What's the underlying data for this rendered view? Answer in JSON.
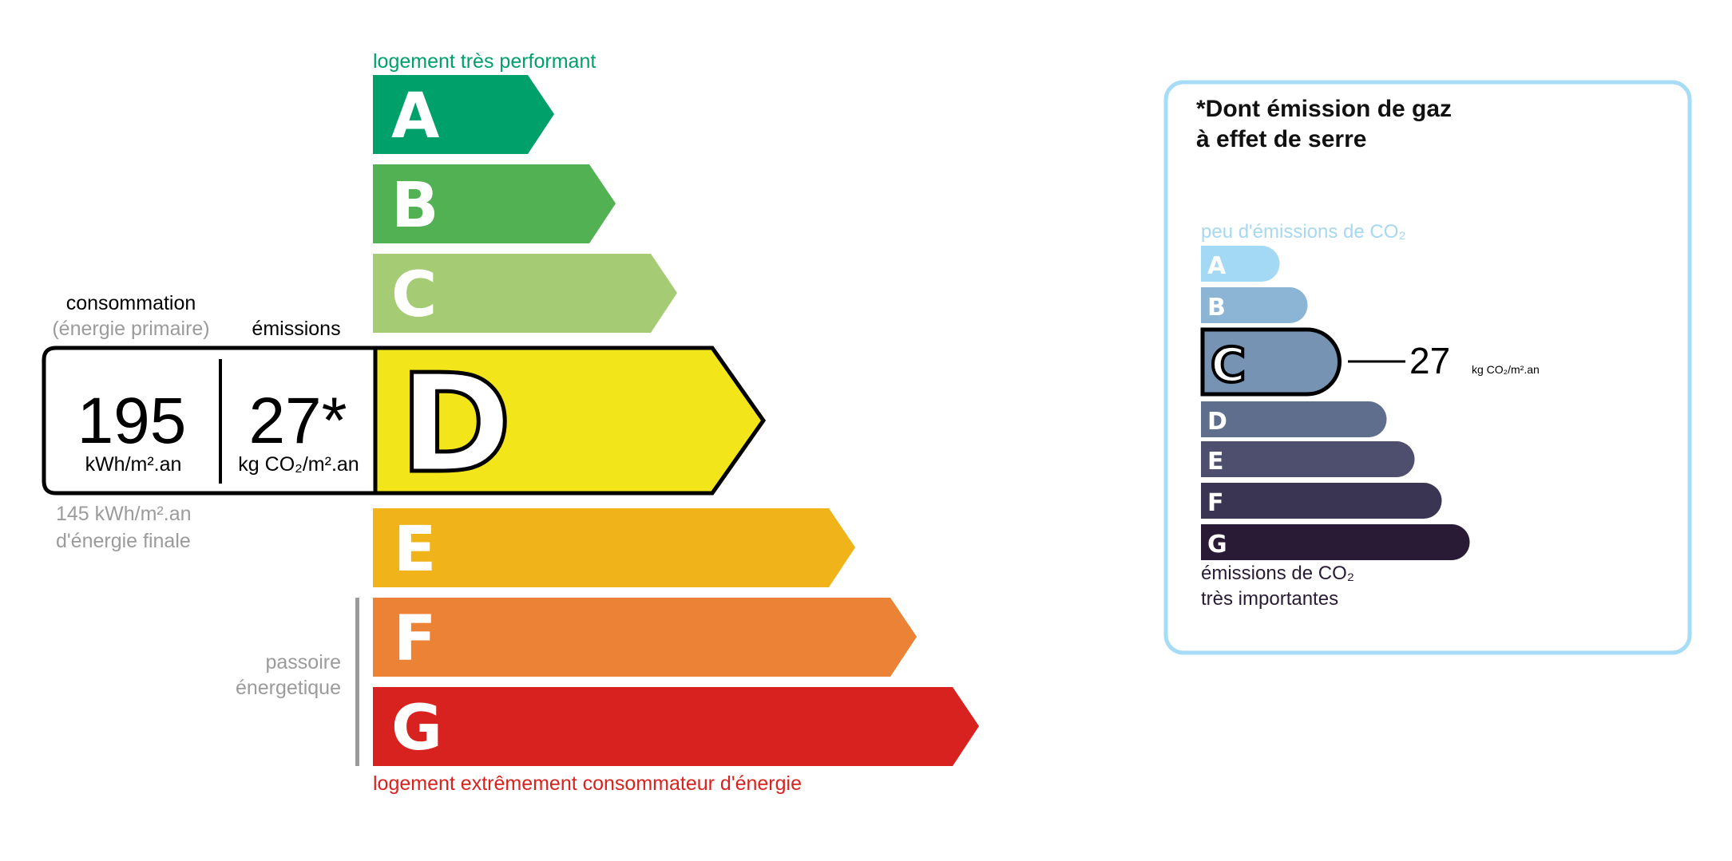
{
  "dpe": {
    "top_label": "logement très performant",
    "bottom_label": "logement extrêmement consommateur d'énergie",
    "classes": [
      {
        "letter": "A",
        "color": "#00a06a"
      },
      {
        "letter": "B",
        "color": "#52b153"
      },
      {
        "letter": "C",
        "color": "#a5cc74"
      },
      {
        "letter": "D",
        "color": "#f2e61b"
      },
      {
        "letter": "E",
        "color": "#f0b41a"
      },
      {
        "letter": "F",
        "color": "#eb8235"
      },
      {
        "letter": "G",
        "color": "#d7221f"
      }
    ],
    "current_class": "D",
    "consumption_label": "consommation",
    "consumption_sublabel": "(énergie primaire)",
    "emissions_label": "émissions",
    "consumption_value": "195",
    "consumption_unit": "kWh/m².an",
    "emissions_value": "27*",
    "emissions_unit": "kg CO₂/m².an",
    "final_energy_value": "145 kWh/m².an",
    "final_energy_label": "d'énergie finale",
    "passoire_line1": "passoire",
    "passoire_line2": "énergetique",
    "top_color": "#00a06a",
    "bottom_color": "#d7221f"
  },
  "ges": {
    "title_line1": "*Dont émission de gaz",
    "title_line2": "à effet de serre",
    "top_label": "peu d'émissions de CO₂",
    "bottom_label_line1": "émissions de CO₂",
    "bottom_label_line2": "très importantes",
    "classes": [
      {
        "letter": "A",
        "color": "#a4d9f5"
      },
      {
        "letter": "B",
        "color": "#8cb4d4"
      },
      {
        "letter": "C",
        "color": "#7693b3"
      },
      {
        "letter": "D",
        "color": "#5f6e8d"
      },
      {
        "letter": "E",
        "color": "#4e4f6f"
      },
      {
        "letter": "F",
        "color": "#393552"
      },
      {
        "letter": "G",
        "color": "#291b35"
      }
    ],
    "current_class": "C",
    "value": "27",
    "unit": "kg CO₂/m².an",
    "border_color": "#a6dcf5"
  }
}
